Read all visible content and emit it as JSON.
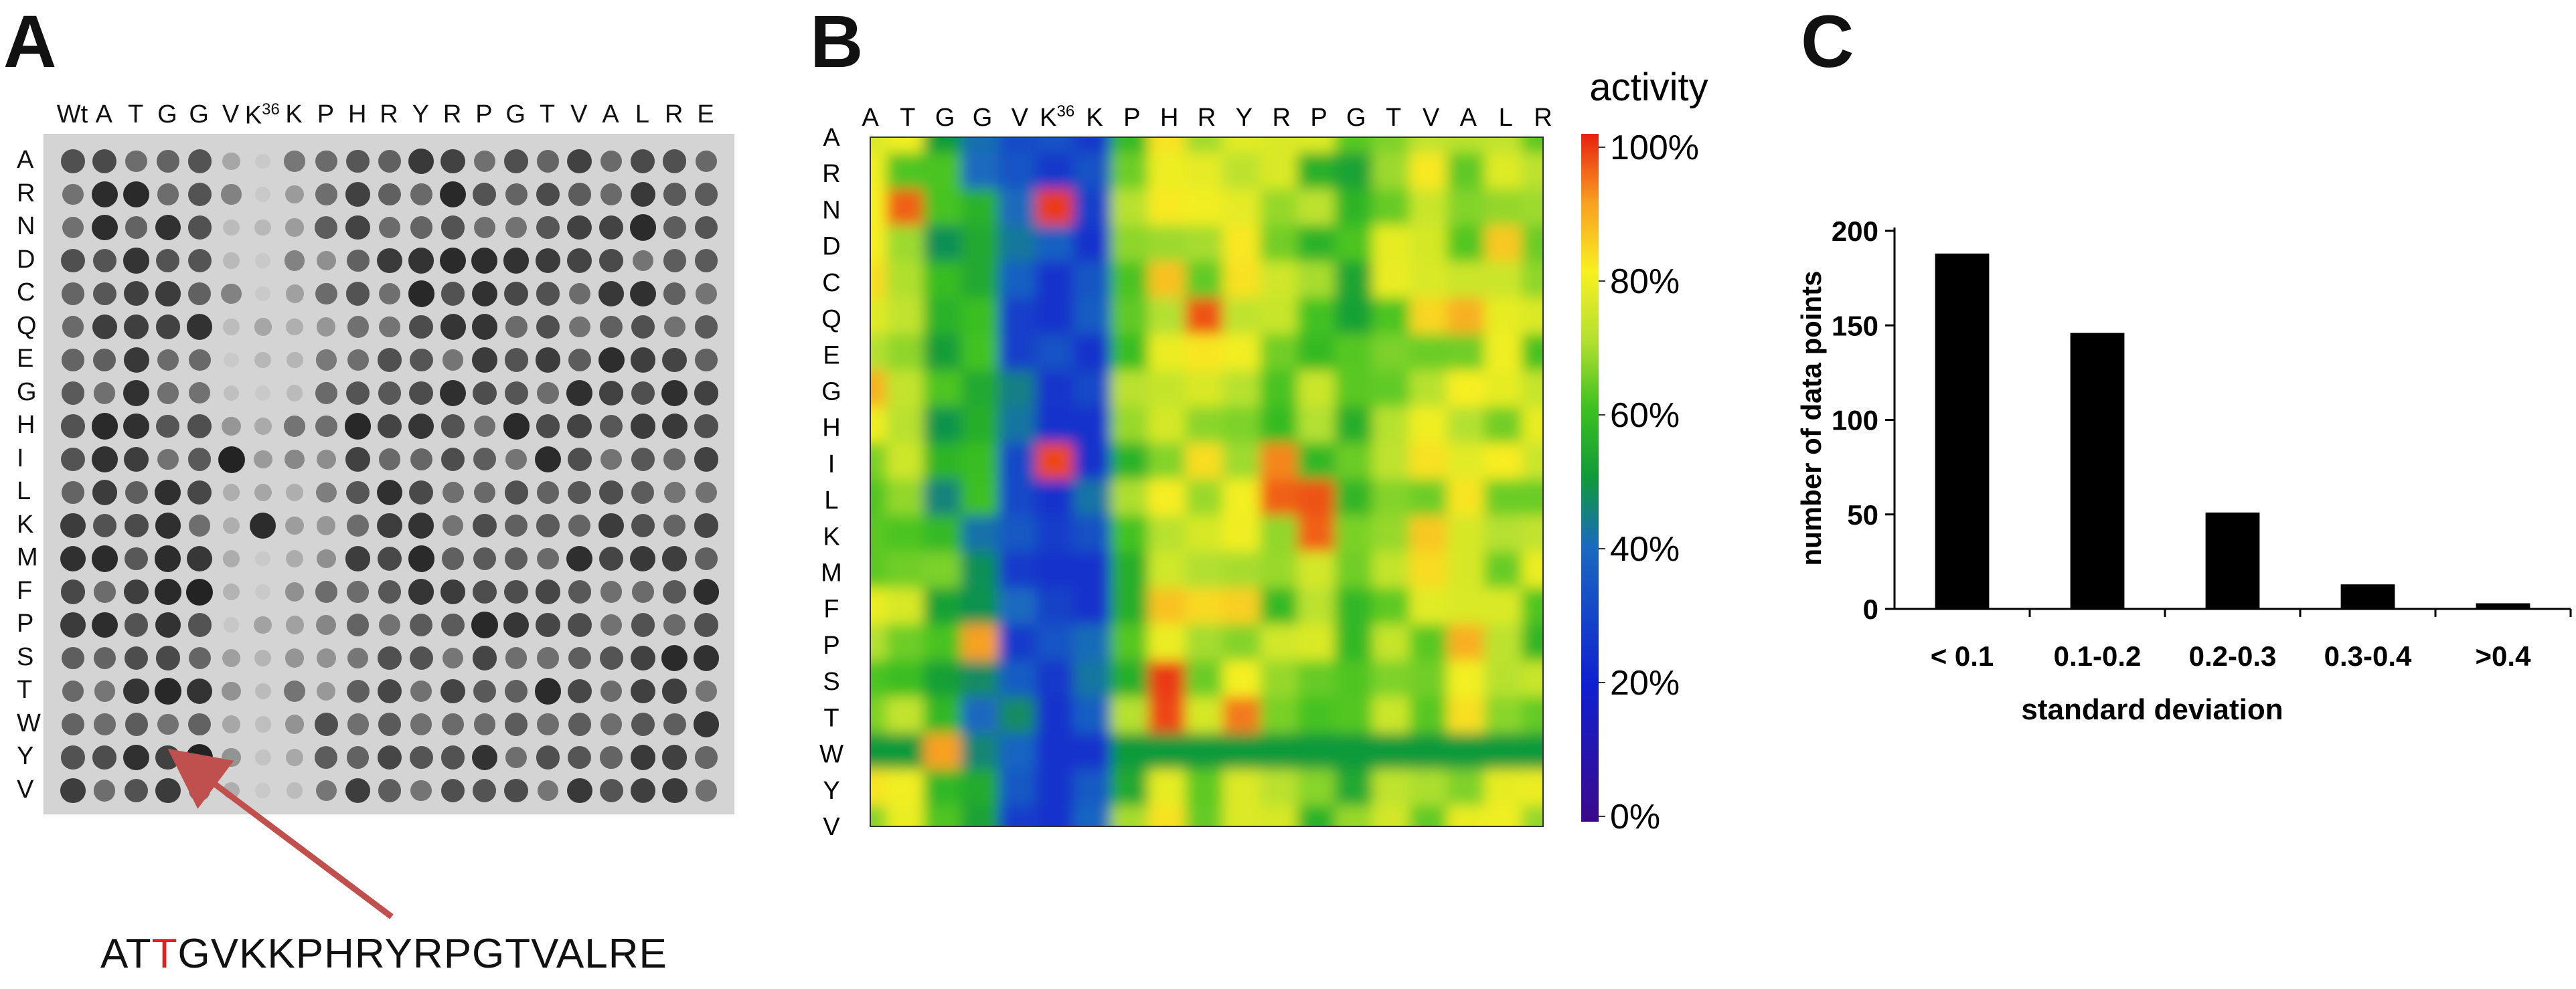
{
  "panels": {
    "a": "A",
    "b": "B",
    "c": "C"
  },
  "panel_a": {
    "columns": [
      "Wt",
      "A",
      "T",
      "G",
      "G",
      "V",
      "K",
      "K",
      "P",
      "H",
      "R",
      "Y",
      "R",
      "P",
      "G",
      "T",
      "V",
      "A",
      "L",
      "R",
      "E"
    ],
    "k_superscript": "36",
    "rows": [
      "A",
      "R",
      "N",
      "D",
      "C",
      "Q",
      "E",
      "G",
      "H",
      "I",
      "L",
      "K",
      "M",
      "F",
      "P",
      "S",
      "T",
      "W",
      "Y",
      "V"
    ],
    "sequence": {
      "pre": "AT",
      "mut": "T",
      "post": "GVKKPHRYRPGTVALRE"
    },
    "arrow_color": "#c0504d"
  },
  "panel_b": {
    "columns": [
      "A",
      "T",
      "G",
      "G",
      "V",
      "K",
      "K",
      "P",
      "H",
      "R",
      "Y",
      "R",
      "P",
      "G",
      "T",
      "V",
      "A",
      "L",
      "R"
    ],
    "k_superscript": "36",
    "rows": [
      "A",
      "R",
      "N",
      "D",
      "C",
      "Q",
      "E",
      "G",
      "H",
      "I",
      "L",
      "K",
      "M",
      "F",
      "P",
      "S",
      "T",
      "W",
      "Y",
      "V"
    ],
    "colorbar_title": "activity",
    "colorbar_ticks": [
      "0%",
      "20%",
      "40%",
      "60%",
      "80%",
      "100%"
    ]
  },
  "chart_data": {
    "type": "bar",
    "categories": [
      "< 0.1",
      "0.1-0.2",
      "0.2-0.3",
      "0.3-0.4",
      ">0.4"
    ],
    "values": [
      188,
      146,
      51,
      13,
      3
    ],
    "xlabel": "standard deviation",
    "ylabel": "number of data points",
    "ylim": [
      0,
      200
    ],
    "yticks": [
      "0",
      "50",
      "100",
      "150",
      "200"
    ],
    "bar_color": "#000000"
  }
}
